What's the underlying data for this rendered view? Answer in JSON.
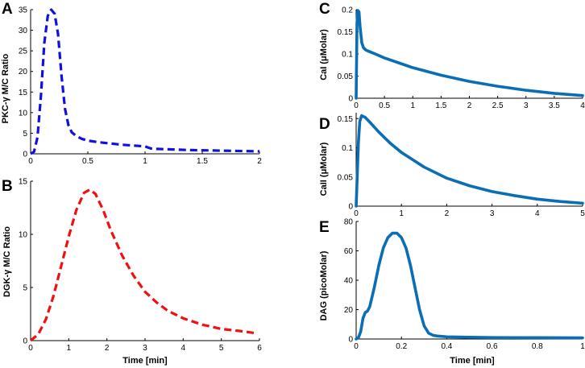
{
  "chart_data": [
    {
      "panel": "A",
      "type": "line",
      "xlabel": "",
      "ylabel": "PKC-γ M/C Ratio",
      "xlim": [
        0,
        2
      ],
      "ylim": [
        0,
        35
      ],
      "xticks": [
        "0",
        "0.5",
        "1",
        "1.5",
        "2"
      ],
      "yticks": [
        "0",
        "5",
        "10",
        "15",
        "20",
        "25",
        "30",
        "35"
      ],
      "color": "#1010e0",
      "line_style": "dashed",
      "series": [
        {
          "name": "PKC-γ",
          "x": [
            0,
            0.03,
            0.06,
            0.09,
            0.12,
            0.15,
            0.18,
            0.21,
            0.24,
            0.27,
            0.3,
            0.33,
            0.36,
            0.4,
            0.45,
            0.5,
            0.6,
            0.7,
            0.8,
            0.9,
            1.0,
            1.02,
            1.05,
            1.1,
            1.2,
            1.4,
            1.6,
            1.8,
            2.0
          ],
          "y": [
            0,
            0.5,
            4,
            14,
            27,
            33.5,
            35,
            34,
            29,
            19,
            11,
            7,
            5.2,
            4.3,
            3.6,
            3.2,
            2.8,
            2.5,
            2.2,
            2.0,
            1.8,
            1.6,
            1.3,
            1.2,
            1.1,
            0.9,
            0.8,
            0.7,
            0.6
          ]
        }
      ]
    },
    {
      "panel": "B",
      "type": "line",
      "xlabel": "Time [min]",
      "ylabel": "DGK-γ M/C Ratio",
      "xlim": [
        0,
        6
      ],
      "ylim": [
        0,
        15
      ],
      "xticks": [
        "0",
        "1",
        "2",
        "3",
        "4",
        "5",
        "6"
      ],
      "yticks": [
        "0",
        "5",
        "10",
        "15"
      ],
      "color": "#f01010",
      "line_style": "dashed",
      "series": [
        {
          "name": "DGK-γ",
          "x": [
            0,
            0.2,
            0.4,
            0.6,
            0.8,
            1.0,
            1.2,
            1.4,
            1.55,
            1.7,
            1.9,
            2.1,
            2.4,
            2.7,
            3.0,
            3.3,
            3.6,
            4.0,
            4.5,
            5.0,
            5.5,
            5.9
          ],
          "y": [
            0,
            0.6,
            2.0,
            4.2,
            7.0,
            9.8,
            12.3,
            13.9,
            14.2,
            13.8,
            12.3,
            10.4,
            8.0,
            6.1,
            4.6,
            3.6,
            2.8,
            2.1,
            1.5,
            1.1,
            0.9,
            0.7
          ]
        }
      ]
    },
    {
      "panel": "C",
      "type": "line",
      "xlabel": "",
      "ylabel": "CaI (μMolar)",
      "xlim": [
        0,
        4
      ],
      "ylim": [
        0,
        0.2
      ],
      "xticks": [
        "0",
        "0.5",
        "1",
        "1.5",
        "2",
        "2.5",
        "3",
        "3.5",
        "4"
      ],
      "yticks": [
        "0",
        "0.05",
        "0.1",
        "0.15",
        "0.2"
      ],
      "color": "#0a6eb4",
      "line_style": "solid",
      "series": [
        {
          "name": "CaI",
          "x": [
            0,
            0.015,
            0.03,
            0.05,
            0.07,
            0.1,
            0.13,
            0.17,
            0.22,
            0.3,
            0.5,
            0.75,
            1.0,
            1.5,
            2.0,
            2.5,
            3.0,
            3.5,
            4.0
          ],
          "y": [
            0,
            0.17,
            0.198,
            0.195,
            0.16,
            0.125,
            0.114,
            0.109,
            0.106,
            0.102,
            0.091,
            0.08,
            0.069,
            0.052,
            0.038,
            0.027,
            0.018,
            0.011,
            0.006
          ]
        }
      ]
    },
    {
      "panel": "D",
      "type": "line",
      "xlabel": "",
      "ylabel": "CaII (μMolar)",
      "xlim": [
        0,
        5
      ],
      "ylim": [
        0,
        0.16
      ],
      "xticks": [
        "0",
        "1",
        "2",
        "3",
        "4",
        "5"
      ],
      "yticks": [
        "0",
        "0.05",
        "0.1",
        "0.15"
      ],
      "color": "#0a6eb4",
      "line_style": "solid",
      "series": [
        {
          "name": "CaII",
          "x": [
            0,
            0.05,
            0.08,
            0.12,
            0.2,
            0.3,
            0.5,
            0.75,
            1.0,
            1.5,
            2.0,
            2.5,
            3.0,
            3.5,
            4.0,
            4.5,
            5.0
          ],
          "y": [
            0,
            0.11,
            0.145,
            0.155,
            0.152,
            0.144,
            0.127,
            0.108,
            0.092,
            0.067,
            0.048,
            0.035,
            0.025,
            0.018,
            0.012,
            0.008,
            0.005
          ]
        }
      ]
    },
    {
      "panel": "E",
      "type": "line",
      "xlabel": "Time [min]",
      "ylabel": "DAG (picoMolar)",
      "xlim": [
        0,
        1
      ],
      "ylim": [
        0,
        80
      ],
      "xticks": [
        "0",
        "0.2",
        "0.4",
        "0.6",
        "0.8",
        "1"
      ],
      "yticks": [
        "0",
        "20",
        "40",
        "60",
        "80"
      ],
      "color": "#0a6eb4",
      "line_style": "solid",
      "series": [
        {
          "name": "DAG",
          "x": [
            0,
            0.01,
            0.02,
            0.03,
            0.04,
            0.05,
            0.06,
            0.08,
            0.1,
            0.12,
            0.14,
            0.16,
            0.18,
            0.2,
            0.22,
            0.24,
            0.26,
            0.28,
            0.3,
            0.32,
            0.34,
            0.36,
            0.4,
            0.5,
            0.6,
            0.8,
            1.0
          ],
          "y": [
            0,
            1,
            5,
            14,
            18,
            19,
            22,
            35,
            50,
            62,
            69,
            72,
            72,
            69,
            62,
            50,
            35,
            20,
            9,
            4,
            2.5,
            2,
            1.5,
            1.2,
            1.0,
            0.9,
            0.8
          ]
        }
      ]
    }
  ]
}
